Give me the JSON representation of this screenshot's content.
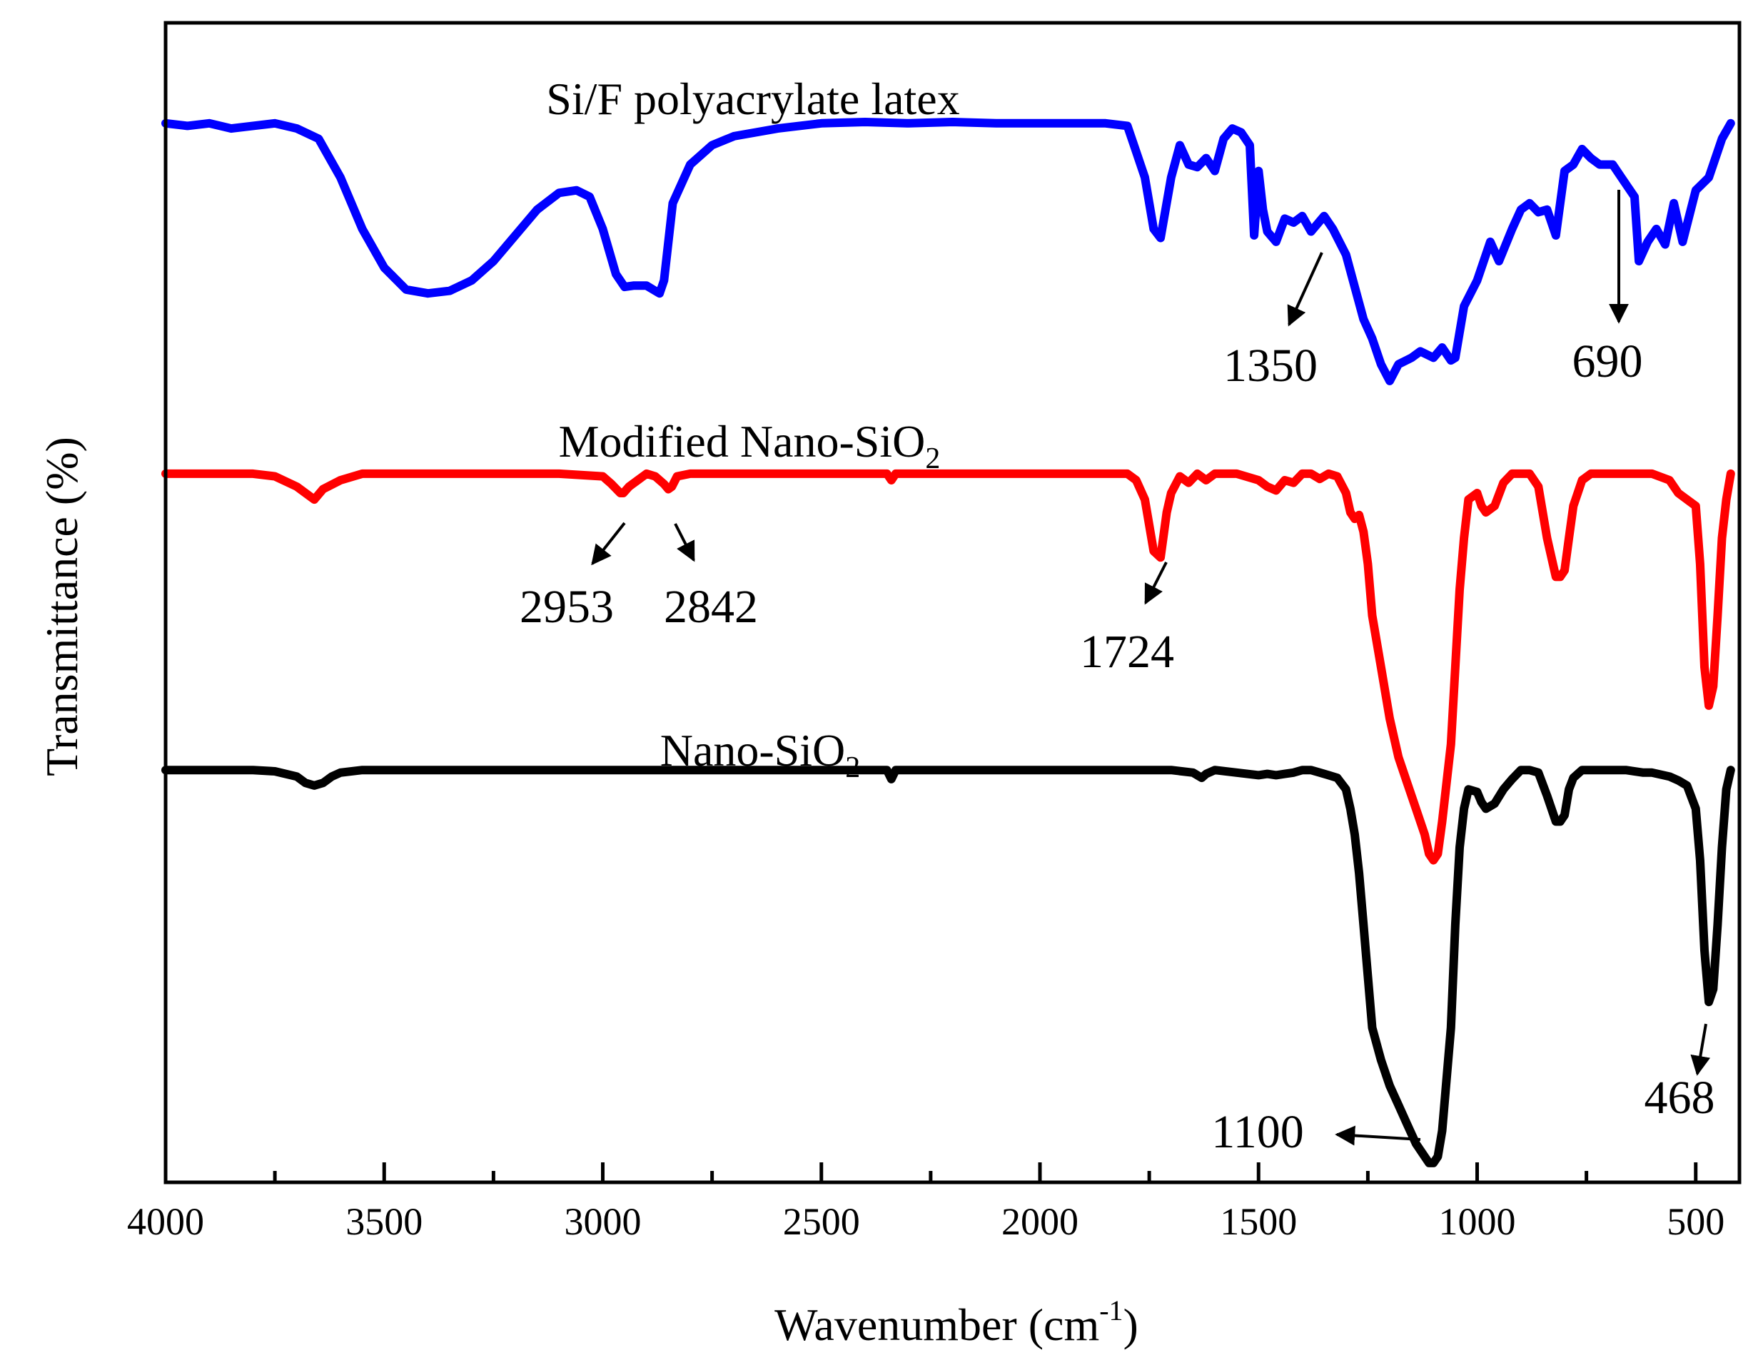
{
  "chart_data": {
    "type": "line",
    "title": "",
    "xlabel": "Wavenumber (cm",
    "xlabel_sup": "-1",
    "xlabel_close": ")",
    "ylabel": "Transmittance (%)",
    "xlim": [
      4000,
      400
    ],
    "ylim": [
      -30,
      60
    ],
    "x_reversed": true,
    "y_ticks_visible": false,
    "xticks": [
      4000,
      3500,
      3000,
      2500,
      2000,
      1500,
      1000,
      500
    ],
    "xtick_labels": [
      "4000",
      "3500",
      "3000",
      "2500",
      "2000",
      "1500",
      "1000",
      "500"
    ],
    "grid": false,
    "legend": "none",
    "series": [
      {
        "name": "Si/F polyacrylate latex",
        "label_main": "Si/F polyacrylate latex",
        "label_sub": "",
        "color": "#0000ff",
        "x": [
          4000,
          3950,
          3900,
          3850,
          3800,
          3750,
          3700,
          3650,
          3600,
          3550,
          3500,
          3450,
          3400,
          3350,
          3300,
          3250,
          3200,
          3150,
          3100,
          3060,
          3030,
          3000,
          2970,
          2950,
          2930,
          2900,
          2880,
          2870,
          2860,
          2840,
          2800,
          2750,
          2700,
          2600,
          2500,
          2400,
          2300,
          2200,
          2100,
          2000,
          1900,
          1850,
          1800,
          1780,
          1760,
          1740,
          1724,
          1700,
          1680,
          1660,
          1640,
          1620,
          1600,
          1580,
          1560,
          1540,
          1520,
          1510,
          1500,
          1490,
          1480,
          1460,
          1440,
          1420,
          1400,
          1380,
          1350,
          1330,
          1300,
          1280,
          1260,
          1240,
          1220,
          1200,
          1180,
          1150,
          1130,
          1100,
          1080,
          1060,
          1050,
          1030,
          1000,
          970,
          950,
          920,
          900,
          880,
          860,
          840,
          820,
          800,
          780,
          760,
          740,
          720,
          690,
          670,
          640,
          630,
          610,
          590,
          570,
          550,
          530,
          500,
          470,
          440,
          420
        ],
        "y": [
          52.2,
          52.0,
          52.2,
          51.8,
          52.0,
          52.2,
          51.8,
          51.0,
          48.0,
          44.0,
          41.0,
          39.3,
          39.0,
          39.2,
          40.0,
          41.5,
          43.5,
          45.5,
          46.8,
          47.0,
          46.5,
          44.0,
          40.5,
          39.5,
          39.6,
          39.6,
          39.2,
          39.0,
          40.0,
          46.0,
          49.0,
          50.5,
          51.2,
          51.8,
          52.2,
          52.3,
          52.2,
          52.3,
          52.2,
          52.2,
          52.2,
          52.2,
          52.0,
          50.0,
          48.0,
          44.0,
          43.3,
          48.0,
          50.5,
          49.0,
          48.8,
          49.5,
          48.5,
          51.0,
          51.8,
          51.5,
          50.5,
          43.5,
          48.5,
          45.5,
          43.8,
          43.0,
          44.8,
          44.5,
          45.0,
          43.8,
          45.0,
          44.0,
          42.0,
          39.5,
          37.0,
          35.5,
          33.5,
          32.2,
          33.5,
          34.0,
          34.5,
          34.0,
          34.8,
          33.8,
          34.0,
          38.0,
          40.0,
          43.0,
          41.5,
          44.0,
          45.5,
          46.0,
          45.3,
          45.5,
          43.5,
          48.5,
          49.0,
          50.2,
          49.5,
          49.0,
          49.0,
          48.0,
          46.5,
          41.5,
          43.0,
          44.0,
          42.8,
          46.0,
          43.0,
          47.0,
          48.0,
          51.0,
          52.2
        ]
      },
      {
        "name": "Modified Nano-SiO2",
        "label_main": "Modified Nano-SiO",
        "label_sub": "2",
        "color": "#ff0000",
        "x": [
          4000,
          3900,
          3800,
          3750,
          3700,
          3680,
          3660,
          3640,
          3600,
          3550,
          3500,
          3400,
          3300,
          3200,
          3100,
          3000,
          2980,
          2960,
          2953,
          2940,
          2920,
          2900,
          2880,
          2860,
          2850,
          2842,
          2830,
          2800,
          2700,
          2600,
          2500,
          2400,
          2350,
          2340,
          2330,
          2300,
          2200,
          2100,
          2000,
          1900,
          1850,
          1800,
          1780,
          1760,
          1740,
          1724,
          1710,
          1700,
          1680,
          1660,
          1640,
          1620,
          1600,
          1550,
          1500,
          1480,
          1460,
          1440,
          1420,
          1400,
          1380,
          1360,
          1340,
          1320,
          1300,
          1290,
          1280,
          1270,
          1260,
          1250,
          1240,
          1220,
          1200,
          1180,
          1160,
          1140,
          1120,
          1110,
          1100,
          1090,
          1080,
          1060,
          1050,
          1040,
          1030,
          1020,
          1000,
          990,
          980,
          960,
          940,
          920,
          900,
          880,
          860,
          840,
          820,
          810,
          800,
          790,
          780,
          760,
          740,
          720,
          700,
          680,
          660,
          620,
          600,
          560,
          540,
          520,
          500,
          490,
          480,
          470,
          460,
          450,
          440,
          430,
          420
        ],
        "y": [
          25.0,
          25.0,
          25.0,
          24.8,
          24.0,
          23.5,
          23.0,
          23.8,
          24.5,
          25.0,
          25.0,
          25.0,
          25.0,
          25.0,
          25.0,
          24.8,
          24.2,
          23.5,
          23.5,
          24.0,
          24.5,
          25.0,
          24.8,
          24.2,
          23.8,
          24.0,
          24.8,
          25.0,
          25.0,
          25.0,
          25.0,
          25.0,
          25.0,
          24.5,
          25.0,
          25.0,
          25.0,
          25.0,
          25.0,
          25.0,
          25.0,
          25.0,
          24.5,
          23.0,
          19.0,
          18.5,
          22.0,
          23.5,
          24.8,
          24.3,
          25.0,
          24.5,
          25.0,
          25.0,
          24.5,
          24.0,
          23.7,
          24.5,
          24.3,
          25.0,
          25.0,
          24.6,
          25.0,
          24.8,
          23.5,
          22.0,
          21.5,
          21.8,
          20.5,
          18.0,
          14.0,
          10.0,
          6.0,
          3.0,
          1.0,
          -1.0,
          -3.0,
          -4.5,
          -5.0,
          -4.5,
          -2.0,
          4.0,
          10.0,
          16.0,
          20.0,
          23.0,
          23.5,
          22.5,
          22.0,
          22.5,
          24.3,
          25.0,
          25.0,
          25.0,
          24.0,
          20.0,
          17.0,
          17.0,
          17.5,
          20.0,
          22.5,
          24.5,
          25.0,
          25.0,
          25.0,
          25.0,
          25.0,
          25.0,
          25.0,
          24.5,
          23.5,
          23.0,
          22.5,
          18.0,
          10.0,
          7.0,
          8.5,
          14.0,
          20.0,
          23.0,
          25.0
        ]
      },
      {
        "name": "Nano-SiO2",
        "label_main": "Nano-SiO",
        "label_sub": "2",
        "color": "#000000",
        "x": [
          4000,
          3900,
          3800,
          3750,
          3700,
          3680,
          3660,
          3640,
          3620,
          3600,
          3550,
          3500,
          3400,
          3300,
          3200,
          3100,
          3000,
          2900,
          2800,
          2700,
          2600,
          2500,
          2400,
          2350,
          2340,
          2330,
          2300,
          2200,
          2100,
          2000,
          1900,
          1800,
          1700,
          1650,
          1630,
          1620,
          1600,
          1550,
          1500,
          1480,
          1460,
          1440,
          1420,
          1400,
          1380,
          1360,
          1340,
          1320,
          1300,
          1290,
          1280,
          1270,
          1260,
          1250,
          1240,
          1220,
          1200,
          1180,
          1160,
          1140,
          1120,
          1110,
          1100,
          1090,
          1080,
          1060,
          1050,
          1040,
          1030,
          1020,
          1000,
          990,
          980,
          960,
          940,
          920,
          900,
          880,
          860,
          840,
          820,
          810,
          800,
          790,
          780,
          760,
          740,
          720,
          700,
          680,
          660,
          620,
          600,
          560,
          540,
          520,
          500,
          490,
          480,
          470,
          460,
          450,
          440,
          430,
          420
        ],
        "y": [
          2.0,
          2.0,
          2.0,
          1.9,
          1.5,
          1.0,
          0.8,
          1.0,
          1.5,
          1.8,
          2.0,
          2.0,
          2.0,
          2.0,
          2.0,
          2.0,
          2.0,
          2.0,
          2.0,
          2.0,
          2.0,
          2.0,
          2.0,
          2.0,
          1.3,
          2.0,
          2.0,
          2.0,
          2.0,
          2.0,
          2.0,
          2.0,
          2.0,
          1.8,
          1.4,
          1.7,
          2.0,
          1.8,
          1.6,
          1.7,
          1.6,
          1.7,
          1.8,
          2.0,
          2.0,
          1.8,
          1.6,
          1.4,
          0.5,
          -1.0,
          -3.0,
          -6.0,
          -10.0,
          -14.0,
          -18.0,
          -20.5,
          -22.5,
          -24.0,
          -25.5,
          -27.0,
          -28.0,
          -28.5,
          -28.5,
          -28.0,
          -26.0,
          -18.0,
          -10.0,
          -4.0,
          -1.0,
          0.5,
          0.3,
          -0.5,
          -1.0,
          -0.6,
          0.5,
          1.3,
          2.0,
          2.0,
          1.8,
          0.0,
          -2.0,
          -2.0,
          -1.5,
          0.5,
          1.4,
          2.0,
          2.0,
          2.0,
          2.0,
          2.0,
          2.0,
          1.8,
          1.8,
          1.5,
          1.2,
          0.8,
          -1.0,
          -5.0,
          -12.0,
          -16.0,
          -15.0,
          -10.0,
          -4.0,
          0.5,
          2.0
        ]
      }
    ],
    "peak_annotations": [
      {
        "label": "1350",
        "x": 1350,
        "series": "Si/F polyacrylate latex"
      },
      {
        "label": "690",
        "x": 690,
        "series": "Si/F polyacrylate latex"
      },
      {
        "label": "2953",
        "x": 2953,
        "series": "Modified Nano-SiO2"
      },
      {
        "label": "2842",
        "x": 2842,
        "series": "Modified Nano-SiO2"
      },
      {
        "label": "1724",
        "x": 1724,
        "series": "Modified Nano-SiO2"
      },
      {
        "label": "1100",
        "x": 1100,
        "series": "Nano-SiO2"
      },
      {
        "label": "468",
        "x": 468,
        "series": "Nano-SiO2"
      }
    ]
  }
}
